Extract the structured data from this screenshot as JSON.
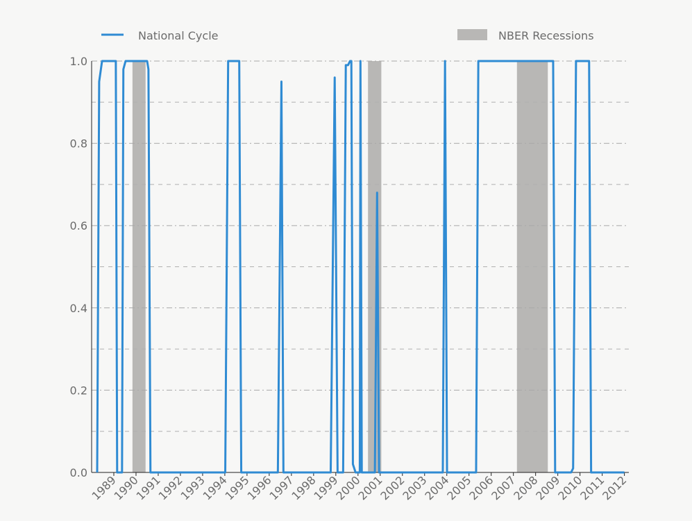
{
  "chart_data": {
    "type": "line",
    "x": [
      1988.25,
      1988.34,
      1988.47,
      1989.09,
      1989.15,
      1989.37,
      1989.43,
      1989.53,
      1990.5,
      1990.56,
      1990.65,
      1994.02,
      1994.15,
      1994.65,
      1994.74,
      1996.39,
      1996.55,
      1996.64,
      1998.77,
      1998.95,
      1999.08,
      1999.33,
      1999.45,
      1999.55,
      1999.64,
      1999.7,
      1999.77,
      1999.89,
      2000.08,
      2000.11,
      2000.17,
      2000.76,
      2000.86,
      2000.95,
      2003.82,
      2003.92,
      2004.01,
      2005.32,
      2005.42,
      2008.79,
      2008.88,
      2009.6,
      2009.69,
      2009.82,
      2010.41,
      2010.5,
      2012.0
    ],
    "series": [
      {
        "name": "National Cycle",
        "color": "#2f8bd3",
        "values": [
          0,
          0.95,
          1.0,
          1.0,
          0,
          0,
          0.98,
          1.0,
          1.0,
          0.98,
          0,
          0,
          1.0,
          1.0,
          0,
          0,
          0.95,
          0,
          0,
          0.96,
          0,
          0,
          0.99,
          0.99,
          1.0,
          1.0,
          0.02,
          0,
          0,
          1.0,
          0,
          0,
          0.68,
          0,
          0,
          1.0,
          0,
          0,
          1.0,
          1.0,
          0,
          0,
          0.01,
          1.0,
          1.0,
          0,
          0
        ]
      }
    ],
    "recessions": {
      "name": "NBER Recessions",
      "color": "#b8b7b5",
      "periods": [
        [
          1989.84,
          1990.43
        ],
        [
          2000.45,
          2001.05
        ],
        [
          2007.16,
          2008.55
        ]
      ]
    },
    "xlim": [
      1988,
      2012.2
    ],
    "xticks": [
      1989,
      1990,
      1991,
      1992,
      1993,
      1994,
      1995,
      1996,
      1997,
      1998,
      1999,
      2000,
      2001,
      2002,
      2003,
      2004,
      2005,
      2006,
      2007,
      2008,
      2009,
      2010,
      2011,
      2012
    ],
    "ylim": [
      0,
      1
    ],
    "yticks": [
      {
        "value": 0,
        "label": "0.0"
      },
      {
        "value": 0.2,
        "label": "0.2"
      },
      {
        "value": 0.4,
        "label": "0.4"
      },
      {
        "value": 0.6,
        "label": "0.6"
      },
      {
        "value": 0.8,
        "label": "0.8"
      },
      {
        "value": 1,
        "label": "1.0"
      }
    ],
    "yminorticks": [
      0.1,
      0.3,
      0.5,
      0.7,
      0.9
    ],
    "grid": true
  }
}
